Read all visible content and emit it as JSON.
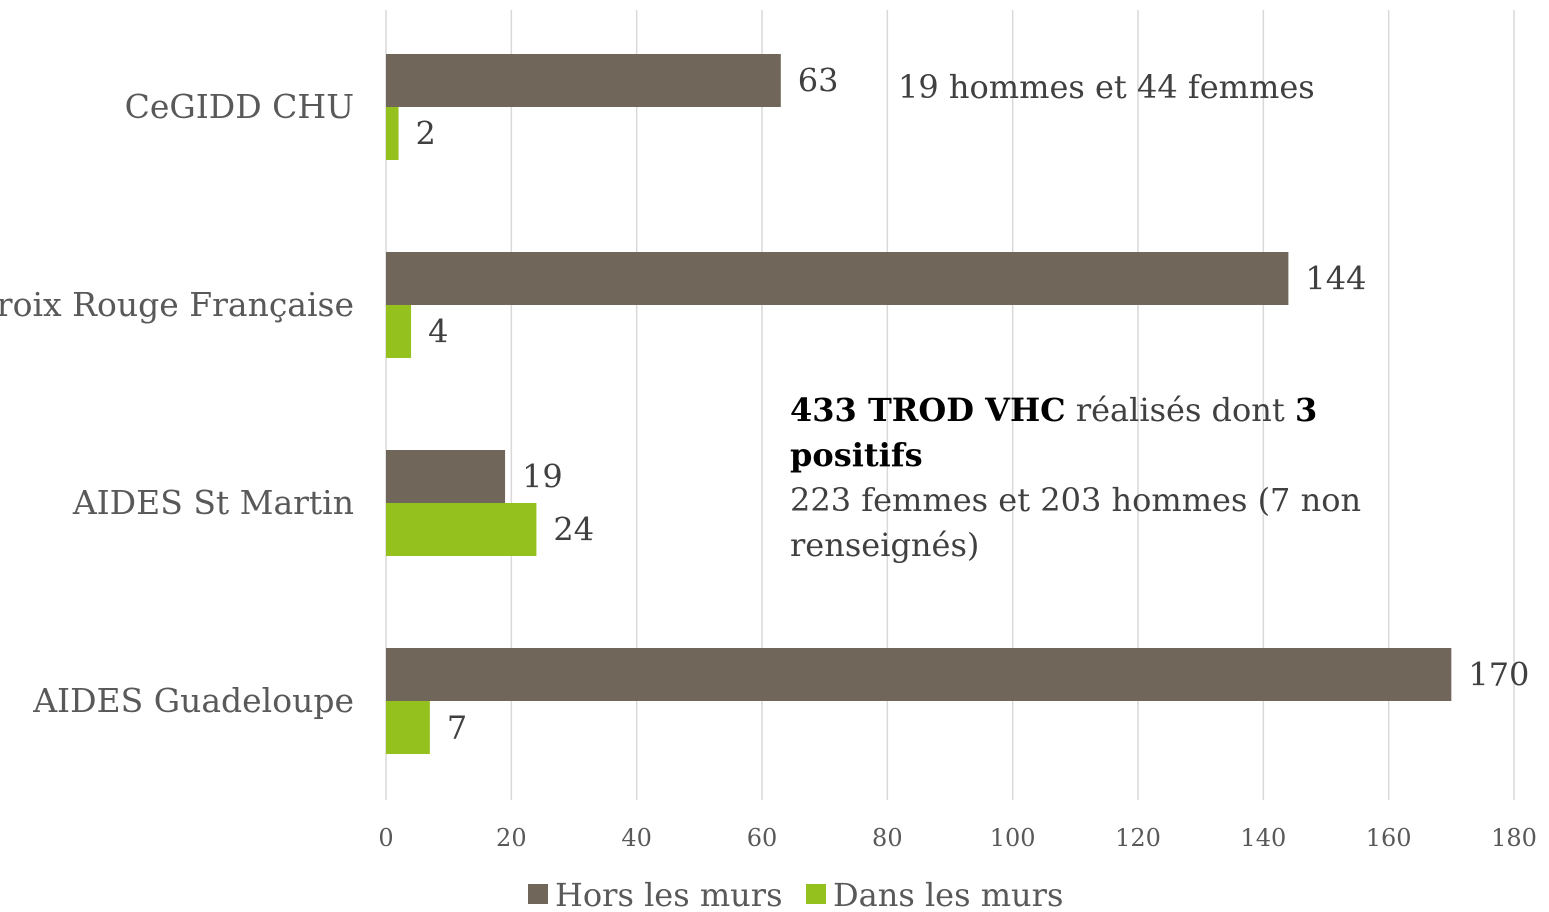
{
  "chart_data": {
    "type": "bar",
    "orientation": "horizontal",
    "categories": [
      "CeGIDD CHU",
      "Croix Rouge Française",
      "AIDES St Martin",
      "AIDES Guadeloupe"
    ],
    "series": [
      {
        "name": "Hors les murs",
        "color": "#70675a",
        "values": [
          63,
          144,
          19,
          170
        ]
      },
      {
        "name": "Dans les murs",
        "color": "#95c11f",
        "values": [
          2,
          4,
          24,
          7
        ]
      }
    ],
    "xlim": [
      0,
      180
    ],
    "xticks": [
      "0",
      "20",
      "40",
      "60",
      "80",
      "100",
      "120",
      "140",
      "160",
      "180"
    ],
    "grid": "vertical",
    "legend_position": "bottom"
  },
  "annotations": {
    "note1": "19 hommes et 44 femmes",
    "note2": {
      "bold1": "433 TROD VHC",
      "text1": " réalisés dont ",
      "bold2": "3 positifs",
      "line2": "223 femmes et 203 hommes (7 non renseignés)"
    }
  }
}
